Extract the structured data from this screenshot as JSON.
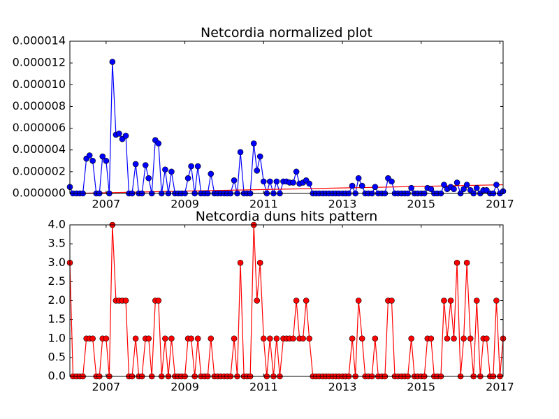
{
  "chart_data": [
    {
      "type": "line",
      "title": "Netcordia normalized plot",
      "color": "#0000ff",
      "marker": "circle",
      "x": [
        2006.08,
        2006.16,
        2006.25,
        2006.33,
        2006.41,
        2006.5,
        2006.58,
        2006.66,
        2006.75,
        2006.83,
        2006.91,
        2007.0,
        2007.08,
        2007.16,
        2007.25,
        2007.33,
        2007.41,
        2007.5,
        2007.58,
        2007.66,
        2007.75,
        2007.83,
        2007.91,
        2008.0,
        2008.08,
        2008.16,
        2008.25,
        2008.33,
        2008.41,
        2008.5,
        2008.58,
        2008.66,
        2008.75,
        2008.83,
        2008.91,
        2009.0,
        2009.08,
        2009.16,
        2009.25,
        2009.33,
        2009.41,
        2009.5,
        2009.58,
        2009.66,
        2009.75,
        2009.83,
        2009.91,
        2010.0,
        2010.08,
        2010.16,
        2010.25,
        2010.33,
        2010.41,
        2010.5,
        2010.58,
        2010.66,
        2010.75,
        2010.83,
        2010.91,
        2011.0,
        2011.08,
        2011.16,
        2011.25,
        2011.33,
        2011.41,
        2011.5,
        2011.58,
        2011.66,
        2011.75,
        2011.83,
        2011.91,
        2012.0,
        2012.08,
        2012.16,
        2012.25,
        2012.33,
        2012.41,
        2012.5,
        2012.58,
        2012.66,
        2012.75,
        2012.83,
        2012.91,
        2013.0,
        2013.08,
        2013.16,
        2013.25,
        2013.33,
        2013.41,
        2013.5,
        2013.58,
        2013.66,
        2013.75,
        2013.83,
        2013.91,
        2014.0,
        2014.08,
        2014.16,
        2014.25,
        2014.33,
        2014.41,
        2014.5,
        2014.58,
        2014.66,
        2014.75,
        2014.83,
        2014.91,
        2015.0,
        2015.08,
        2015.16,
        2015.25,
        2015.33,
        2015.41,
        2015.5,
        2015.58,
        2015.66,
        2015.75,
        2015.83,
        2015.91,
        2016.0,
        2016.08,
        2016.16,
        2016.25,
        2016.33,
        2016.41,
        2016.5,
        2016.58,
        2016.66,
        2016.75,
        2016.83,
        2016.91,
        2017.0,
        2017.08
      ],
      "values": [
        6e-07,
        0,
        0,
        0,
        0,
        3.2e-06,
        3.5e-06,
        3e-06,
        0,
        0,
        3.4e-06,
        3e-06,
        0,
        1.21e-05,
        5.4e-06,
        5.5e-06,
        5e-06,
        5.3e-06,
        0,
        0,
        2.7e-06,
        0,
        0,
        2.6e-06,
        1.4e-06,
        0,
        4.9e-06,
        4.6e-06,
        0,
        2.2e-06,
        0,
        2e-06,
        0,
        0,
        0,
        0,
        1.4e-06,
        2.5e-06,
        0,
        2.5e-06,
        0,
        0,
        0,
        1.8e-06,
        0,
        0,
        0,
        0,
        0,
        0,
        1.2e-06,
        0,
        3.8e-06,
        0,
        0,
        0,
        4.6e-06,
        2.1e-06,
        3.4e-06,
        1.1e-06,
        0,
        1.1e-06,
        0,
        1.1e-06,
        0,
        1.1e-06,
        1.1e-06,
        1e-06,
        1e-06,
        2e-06,
        9e-07,
        1e-06,
        1.2e-06,
        9e-07,
        0,
        0,
        0,
        0,
        0,
        0,
        0,
        0,
        0,
        0,
        0,
        0,
        7e-07,
        0,
        1.4e-06,
        7e-07,
        0,
        0,
        0,
        6e-07,
        0,
        0,
        0,
        1.4e-06,
        1.1e-06,
        0,
        0,
        0,
        0,
        0,
        5e-07,
        0,
        0,
        0,
        0,
        5e-07,
        4e-07,
        0,
        0,
        0,
        8e-07,
        4e-07,
        6e-07,
        4e-07,
        1e-06,
        0,
        4e-07,
        8e-07,
        3e-07,
        0,
        5e-07,
        0,
        3e-07,
        3e-07,
        0,
        0,
        8e-07,
        0,
        2e-07
      ],
      "trend": {
        "x": [
          2006.08,
          2017.08
        ],
        "values": [
          0,
          8e-07
        ],
        "color": "#ff0000"
      },
      "xlim": [
        2006.08,
        2017.08
      ],
      "xticks": [
        2007,
        2009,
        2011,
        2013,
        2015,
        2017
      ],
      "ylim": [
        0,
        1.4e-05
      ],
      "yticks": [
        {
          "value": 0,
          "label": "0.000000"
        },
        {
          "value": 2e-06,
          "label": "0.000002"
        },
        {
          "value": 4e-06,
          "label": "0.000004"
        },
        {
          "value": 6e-06,
          "label": "0.000006"
        },
        {
          "value": 8e-06,
          "label": "0.000008"
        },
        {
          "value": 1e-05,
          "label": "0.000010"
        },
        {
          "value": 1.2e-05,
          "label": "0.000012"
        },
        {
          "value": 1.4e-05,
          "label": "0.000014"
        }
      ]
    },
    {
      "type": "line",
      "title": "Netcordia duns hits pattern",
      "color": "#ff0000",
      "marker": "circle",
      "x": [
        2006.08,
        2006.16,
        2006.25,
        2006.33,
        2006.41,
        2006.5,
        2006.58,
        2006.66,
        2006.75,
        2006.83,
        2006.91,
        2007.0,
        2007.08,
        2007.16,
        2007.25,
        2007.33,
        2007.41,
        2007.5,
        2007.58,
        2007.66,
        2007.75,
        2007.83,
        2007.91,
        2008.0,
        2008.08,
        2008.16,
        2008.25,
        2008.33,
        2008.41,
        2008.5,
        2008.58,
        2008.66,
        2008.75,
        2008.83,
        2008.91,
        2009.0,
        2009.08,
        2009.16,
        2009.25,
        2009.33,
        2009.41,
        2009.5,
        2009.58,
        2009.66,
        2009.75,
        2009.83,
        2009.91,
        2010.0,
        2010.08,
        2010.16,
        2010.25,
        2010.33,
        2010.41,
        2010.5,
        2010.58,
        2010.66,
        2010.75,
        2010.83,
        2010.91,
        2011.0,
        2011.08,
        2011.16,
        2011.25,
        2011.33,
        2011.41,
        2011.5,
        2011.58,
        2011.66,
        2011.75,
        2011.83,
        2011.91,
        2012.0,
        2012.08,
        2012.16,
        2012.25,
        2012.33,
        2012.41,
        2012.5,
        2012.58,
        2012.66,
        2012.75,
        2012.83,
        2012.91,
        2013.0,
        2013.08,
        2013.16,
        2013.25,
        2013.33,
        2013.41,
        2013.5,
        2013.58,
        2013.66,
        2013.75,
        2013.83,
        2013.91,
        2014.0,
        2014.08,
        2014.16,
        2014.25,
        2014.33,
        2014.41,
        2014.5,
        2014.58,
        2014.66,
        2014.75,
        2014.83,
        2014.91,
        2015.0,
        2015.08,
        2015.16,
        2015.25,
        2015.33,
        2015.41,
        2015.5,
        2015.58,
        2015.66,
        2015.75,
        2015.83,
        2015.91,
        2016.0,
        2016.08,
        2016.16,
        2016.25,
        2016.33,
        2016.41,
        2016.5,
        2016.58,
        2016.66,
        2016.75,
        2016.83,
        2016.91,
        2017.0,
        2017.08
      ],
      "values": [
        3,
        0,
        0,
        0,
        0,
        1,
        1,
        1,
        0,
        0,
        1,
        1,
        0,
        4,
        2,
        2,
        2,
        2,
        0,
        0,
        1,
        0,
        0,
        1,
        1,
        0,
        2,
        2,
        0,
        1,
        0,
        1,
        0,
        0,
        0,
        0,
        1,
        1,
        0,
        1,
        0,
        0,
        0,
        1,
        0,
        0,
        0,
        0,
        0,
        0,
        1,
        0,
        3,
        0,
        0,
        0,
        4,
        2,
        3,
        1,
        0,
        1,
        0,
        1,
        0,
        1,
        1,
        1,
        1,
        2,
        1,
        1,
        2,
        1,
        0,
        0,
        0,
        0,
        0,
        0,
        0,
        0,
        0,
        0,
        0,
        0,
        1,
        0,
        2,
        1,
        0,
        0,
        0,
        1,
        0,
        0,
        0,
        2,
        2,
        0,
        0,
        0,
        0,
        0,
        1,
        0,
        0,
        0,
        0,
        1,
        1,
        0,
        0,
        0,
        2,
        1,
        2,
        1,
        3,
        0,
        1,
        3,
        1,
        0,
        2,
        0,
        1,
        1,
        0,
        0,
        2,
        0,
        1
      ],
      "xlim": [
        2006.08,
        2017.08
      ],
      "xticks": [
        2007,
        2009,
        2011,
        2013,
        2015,
        2017
      ],
      "ylim": [
        0,
        4
      ],
      "yticks": [
        {
          "value": 0,
          "label": "0.0"
        },
        0.5,
        {
          "value": 1,
          "label": "1.0"
        },
        1.5,
        {
          "value": 2,
          "label": "2.0"
        },
        2.5,
        {
          "value": 3,
          "label": "3.0"
        },
        3.5,
        {
          "value": 4,
          "label": "4.0"
        }
      ]
    }
  ]
}
